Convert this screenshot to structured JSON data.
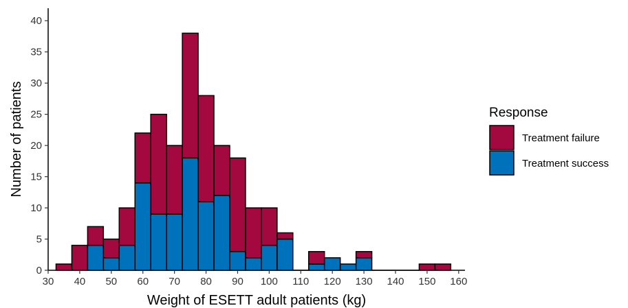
{
  "chart_data": {
    "type": "bar",
    "stacked": true,
    "xlabel": "Weight of ESETT adult patients (kg)",
    "ylabel": "Number of patients",
    "xlim": [
      30,
      162
    ],
    "ylim": [
      0,
      42
    ],
    "bin_width": 5,
    "x_ticks": [
      30,
      40,
      50,
      60,
      70,
      80,
      90,
      100,
      110,
      120,
      130,
      140,
      150,
      160
    ],
    "x_tick_labels": [
      "30",
      "40",
      "50",
      "60",
      "70",
      "80",
      "90",
      "100",
      "110",
      "120",
      "130",
      "140",
      "150",
      "160"
    ],
    "y_ticks": [
      0,
      5,
      10,
      15,
      20,
      25,
      30,
      35,
      40
    ],
    "y_tick_labels": [
      "0",
      "5",
      "10",
      "15",
      "20",
      "25",
      "30",
      "35",
      "40"
    ],
    "bin_centers": [
      35,
      40,
      45,
      50,
      55,
      60,
      65,
      70,
      75,
      80,
      85,
      90,
      95,
      100,
      105,
      110,
      115,
      120,
      125,
      130,
      135,
      140,
      145,
      150,
      155
    ],
    "series": [
      {
        "name": "Treatment success",
        "color": "#0072BB",
        "values": [
          0,
          0,
          4,
          2,
          4,
          14,
          9,
          9,
          18,
          11,
          12,
          3,
          2,
          4,
          5,
          0,
          1,
          2,
          1,
          2,
          0,
          0,
          0,
          0,
          0
        ]
      },
      {
        "name": "Treatment failure",
        "color": "#A3093F",
        "values": [
          1,
          4,
          3,
          3,
          6,
          8,
          16,
          11,
          20,
          17,
          8,
          15,
          8,
          6,
          1,
          0,
          2,
          0,
          0,
          1,
          0,
          0,
          0,
          1,
          1
        ]
      }
    ],
    "grid": false,
    "legend": {
      "title": "Response",
      "placement": "right",
      "entries": [
        {
          "label": "Treatment failure",
          "color": "#A3093F"
        },
        {
          "label": "Treatment success",
          "color": "#0072BB"
        }
      ]
    }
  }
}
